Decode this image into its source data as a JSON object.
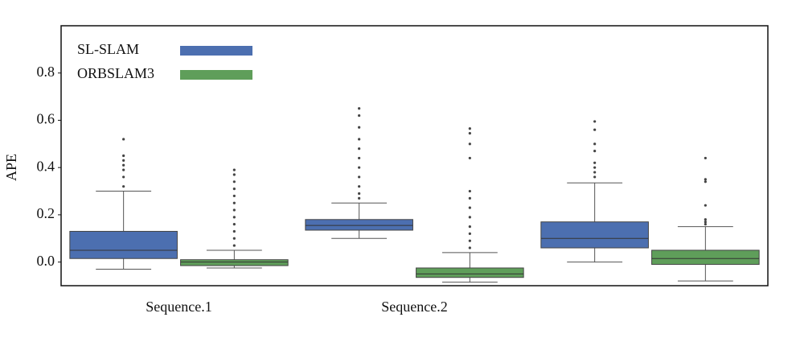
{
  "chart_data": {
    "type": "box",
    "ylabel": "APE",
    "categories": [
      "Sequence.1",
      "Sequence.2",
      null
    ],
    "ylim": [
      -0.1,
      1.0
    ],
    "yticks": [
      {
        "value": 0,
        "label": "0.0"
      },
      0.2,
      0.4,
      0.6,
      0.8
    ],
    "legend": "upper left",
    "series": [
      {
        "name": "SL-SLAM",
        "color": "#4c6fb0",
        "boxes": [
          {
            "min": -0.03,
            "q1": 0.015,
            "median": 0.05,
            "q3": 0.13,
            "max": 0.3,
            "outliers": [
              0.32,
              0.36,
              0.39,
              0.41,
              0.43,
              0.45,
              0.52
            ]
          },
          {
            "min": 0.1,
            "q1": 0.135,
            "median": 0.155,
            "q3": 0.18,
            "max": 0.25,
            "outliers": [
              0.27,
              0.29,
              0.32,
              0.36,
              0.4,
              0.44,
              0.48,
              0.52,
              0.57,
              0.62,
              0.65
            ]
          },
          {
            "min": 0.0,
            "q1": 0.06,
            "median": 0.1,
            "q3": 0.17,
            "max": 0.335,
            "outliers": [
              0.36,
              0.38,
              0.4,
              0.42,
              0.47,
              0.5,
              0.56,
              0.595
            ]
          }
        ]
      },
      {
        "name": "ORBSLAM3",
        "color": "#5f9e5a",
        "boxes": [
          {
            "min": -0.025,
            "q1": -0.015,
            "median": 0.0,
            "q3": 0.01,
            "max": 0.05,
            "outliers": [
              0.07,
              0.1,
              0.13,
              0.16,
              0.19,
              0.22,
              0.25,
              0.28,
              0.31,
              0.34,
              0.37,
              0.39
            ]
          },
          {
            "min": -0.085,
            "q1": -0.065,
            "median": -0.05,
            "q3": -0.025,
            "max": 0.04,
            "outliers": [
              0.06,
              0.09,
              0.12,
              0.15,
              0.19,
              0.23,
              0.27,
              0.3,
              0.44,
              0.5,
              0.545,
              0.565
            ]
          },
          {
            "min": -0.08,
            "q1": -0.01,
            "median": 0.015,
            "q3": 0.05,
            "max": 0.15,
            "outliers": [
              0.16,
              0.17,
              0.18,
              0.24,
              0.34,
              0.35,
              0.44
            ]
          }
        ]
      }
    ]
  }
}
